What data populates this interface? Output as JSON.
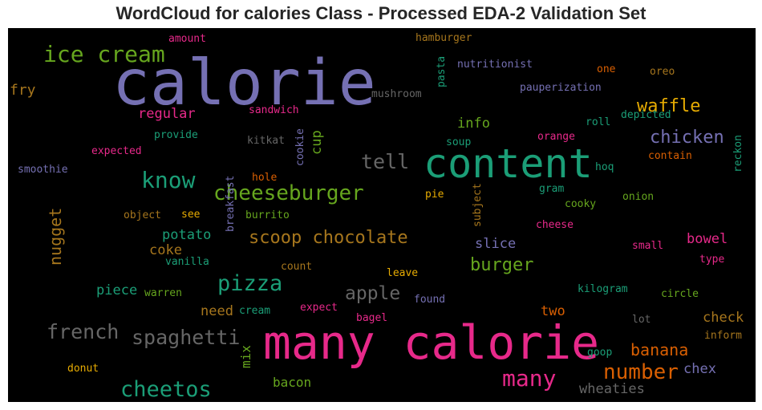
{
  "chart_data": {
    "type": "wordcloud",
    "title": "WordCloud for calories Class - Processed EDA-2 Validation Set",
    "background": "#000000",
    "palette": "Dark2",
    "words": [
      {
        "text": "calorie",
        "color": "#7570b3"
      },
      {
        "text": "many calorie",
        "color": "#e7298a"
      },
      {
        "text": "content",
        "color": "#1b9e77"
      },
      {
        "text": "ice cream",
        "color": "#66a61e"
      },
      {
        "text": "cheeseburger",
        "color": "#66a61e"
      },
      {
        "text": "know",
        "color": "#1b9e77"
      },
      {
        "text": "scoop chocolate",
        "color": "#a6761d"
      },
      {
        "text": "pizza",
        "color": "#1b9e77"
      },
      {
        "text": "french",
        "color": "#666666"
      },
      {
        "text": "spaghetti",
        "color": "#666666"
      },
      {
        "text": "cheetos",
        "color": "#1b9e77"
      },
      {
        "text": "number",
        "color": "#d95f02"
      },
      {
        "text": "many",
        "color": "#e7298a"
      },
      {
        "text": "waffle",
        "color": "#e6ab02"
      },
      {
        "text": "chicken",
        "color": "#7570b3"
      },
      {
        "text": "burger",
        "color": "#66a61e"
      },
      {
        "text": "apple",
        "color": "#666666"
      },
      {
        "text": "tell",
        "color": "#666666"
      },
      {
        "text": "banana",
        "color": "#d95f02"
      },
      {
        "text": "nugget",
        "color": "#a6761d"
      },
      {
        "text": "regular",
        "color": "#e7298a"
      },
      {
        "text": "info",
        "color": "#66a61e"
      },
      {
        "text": "cup",
        "color": "#66a61e"
      },
      {
        "text": "slice",
        "color": "#7570b3"
      },
      {
        "text": "bowel",
        "color": "#e7298a"
      },
      {
        "text": "check",
        "color": "#a6761d"
      },
      {
        "text": "fry",
        "color": "#a6761d"
      },
      {
        "text": "potato",
        "color": "#1b9e77"
      },
      {
        "text": "coke",
        "color": "#a6761d"
      },
      {
        "text": "piece",
        "color": "#1b9e77"
      },
      {
        "text": "need",
        "color": "#a6761d"
      },
      {
        "text": "two",
        "color": "#d95f02"
      },
      {
        "text": "chex",
        "color": "#7570b3"
      },
      {
        "text": "wheaties",
        "color": "#666666"
      },
      {
        "text": "bacon",
        "color": "#66a61e"
      },
      {
        "text": "mix",
        "color": "#66a61e"
      },
      {
        "text": "amount",
        "color": "#e7298a"
      },
      {
        "text": "hamburger",
        "color": "#a6761d"
      },
      {
        "text": "pasta",
        "color": "#1b9e77"
      },
      {
        "text": "nutritionist",
        "color": "#7570b3"
      },
      {
        "text": "one",
        "color": "#d95f02"
      },
      {
        "text": "oreo",
        "color": "#a6761d"
      },
      {
        "text": "mushroom",
        "color": "#666666"
      },
      {
        "text": "pauperization",
        "color": "#7570b3"
      },
      {
        "text": "sandwich",
        "color": "#e7298a"
      },
      {
        "text": "provide",
        "color": "#1b9e77"
      },
      {
        "text": "roll",
        "color": "#1b9e77"
      },
      {
        "text": "depicted",
        "color": "#1b9e77"
      },
      {
        "text": "expected",
        "color": "#e7298a"
      },
      {
        "text": "kitkat",
        "color": "#666666"
      },
      {
        "text": "cookie",
        "color": "#7570b3"
      },
      {
        "text": "soup",
        "color": "#1b9e77"
      },
      {
        "text": "orange",
        "color": "#e7298a"
      },
      {
        "text": "reckon",
        "color": "#1b9e77"
      },
      {
        "text": "smoothie",
        "color": "#7570b3"
      },
      {
        "text": "breakfast",
        "color": "#7570b3"
      },
      {
        "text": "hole",
        "color": "#d95f02"
      },
      {
        "text": "hoq",
        "color": "#1b9e77"
      },
      {
        "text": "contain",
        "color": "#d95f02"
      },
      {
        "text": "pie",
        "color": "#e6ab02"
      },
      {
        "text": "subject",
        "color": "#a6761d"
      },
      {
        "text": "gram",
        "color": "#1b9e77"
      },
      {
        "text": "onion",
        "color": "#66a61e"
      },
      {
        "text": "object",
        "color": "#a6761d"
      },
      {
        "text": "see",
        "color": "#e6ab02"
      },
      {
        "text": "burrito",
        "color": "#66a61e"
      },
      {
        "text": "cooky",
        "color": "#66a61e"
      },
      {
        "text": "cheese",
        "color": "#e7298a"
      },
      {
        "text": "small",
        "color": "#e7298a"
      },
      {
        "text": "vanilla",
        "color": "#1b9e77"
      },
      {
        "text": "count",
        "color": "#a6761d"
      },
      {
        "text": "leave",
        "color": "#e6ab02"
      },
      {
        "text": "type",
        "color": "#e7298a"
      },
      {
        "text": "warren",
        "color": "#66a61e"
      },
      {
        "text": "kilogram",
        "color": "#1b9e77"
      },
      {
        "text": "circle",
        "color": "#66a61e"
      },
      {
        "text": "found",
        "color": "#7570b3"
      },
      {
        "text": "cream",
        "color": "#1b9e77"
      },
      {
        "text": "expect",
        "color": "#e7298a"
      },
      {
        "text": "bagel",
        "color": "#e7298a"
      },
      {
        "text": "lot",
        "color": "#666666"
      },
      {
        "text": "inform",
        "color": "#a6761d"
      },
      {
        "text": "goop",
        "color": "#1b9e77"
      },
      {
        "text": "donut",
        "color": "#e6ab02"
      }
    ]
  }
}
